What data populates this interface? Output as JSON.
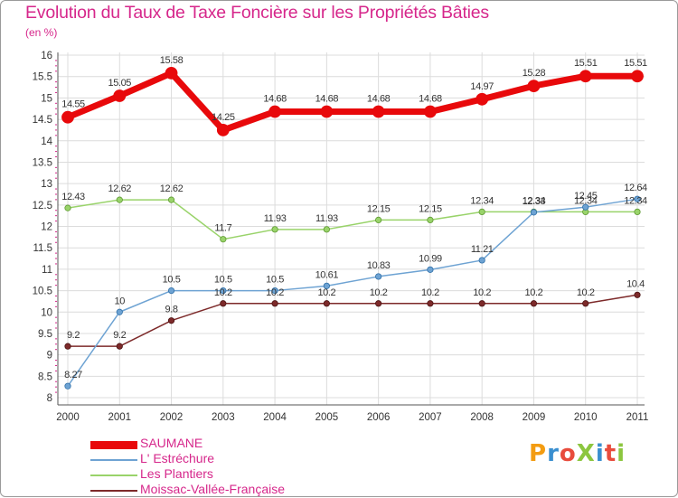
{
  "header": {
    "title": "Evolution du Taux de Taxe Foncière sur les Propriétés Bâties",
    "unit": "(en %)"
  },
  "logo": {
    "text": "ProXiti",
    "colors": [
      "#f39c12",
      "#3a8fd0",
      "#e84c3d",
      "#8cc63f",
      "#3a8fd0",
      "#e84c3d",
      "#8cc63f"
    ]
  },
  "chart_data": {
    "type": "line",
    "title": "Evolution du Taux de Taxe Foncière sur les Propriétés Bâties",
    "ylabel": "(en %)",
    "xlabel": "",
    "x": [
      "2000",
      "2001",
      "2002",
      "2003",
      "2004",
      "2005",
      "2006",
      "2007",
      "2008",
      "2009",
      "2010",
      "2011"
    ],
    "ylim": [
      8,
      16
    ],
    "yticks": [
      "8",
      "8.5",
      "9",
      "9.5",
      "10",
      "10.5",
      "11",
      "11.5",
      "12",
      "12.5",
      "13",
      "13.5",
      "14",
      "14.5",
      "15",
      "15.5",
      "16"
    ],
    "grid": true,
    "series": [
      {
        "name": "SAUMANE",
        "color": "#e8090b",
        "values": [
          14.55,
          15.05,
          15.58,
          14.25,
          14.68,
          14.68,
          14.68,
          14.68,
          14.97,
          15.28,
          15.51,
          15.51
        ],
        "labels": [
          "14.55",
          "15.05",
          "15.58",
          "14.25",
          "14.68",
          "14.68",
          "14.68",
          "14.68",
          "14.97",
          "15.28",
          "15.51",
          "15.51"
        ]
      },
      {
        "name": "L' Estréchure",
        "color": "#6ea3d3",
        "values": [
          8.27,
          10,
          10.5,
          10.5,
          10.5,
          10.61,
          10.83,
          10.99,
          11.21,
          12.33,
          12.45,
          12.64
        ],
        "labels": [
          "8.27",
          "10",
          "10.5",
          "10.5",
          "10.5",
          "10.61",
          "10.83",
          "10.99",
          "11.21",
          "12.33",
          "12.45",
          "12.64"
        ]
      },
      {
        "name": "Les Plantiers",
        "color": "#99d36a",
        "values": [
          12.43,
          12.62,
          12.62,
          11.7,
          11.93,
          11.93,
          12.15,
          12.15,
          12.34,
          12.34,
          12.34,
          12.34
        ],
        "labels": [
          "12.43",
          "12.62",
          "12.62",
          "11.7",
          "11.93",
          "11.93",
          "12.15",
          "12.15",
          "12.34",
          "12.34",
          "12.34",
          "12.34"
        ]
      },
      {
        "name": "Moissac-Vallée-Française",
        "color": "#7d2a2a",
        "values": [
          9.2,
          9.2,
          9.8,
          10.2,
          10.2,
          10.2,
          10.2,
          10.2,
          10.2,
          10.2,
          10.2,
          10.4
        ],
        "labels": [
          "9.2",
          "9.2",
          "9.8",
          "10.2",
          "10.2",
          "10.2",
          "10.2",
          "10.2",
          "10.2",
          "10.2",
          "10.2",
          "10.4"
        ]
      }
    ]
  }
}
